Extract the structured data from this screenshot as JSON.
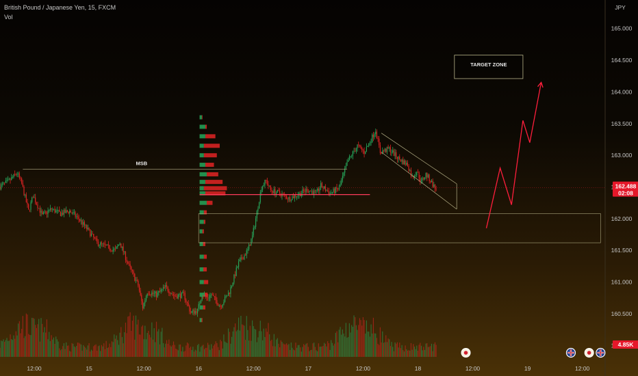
{
  "header": {
    "symbol": "British Pound / Japanese Yen, 15, FXCM",
    "indicator": "Vol"
  },
  "colors": {
    "up": "#26a65b",
    "down": "#e02424",
    "accent_line": "#ff3b5c",
    "price_badge": "#e5182a",
    "annotation": "#b9b48a"
  },
  "chart_data": {
    "type": "candlestick",
    "currency_label": "JPY",
    "y_ticks": [
      "165.000",
      "164.500",
      "164.000",
      "163.500",
      "163.000",
      "162.500",
      "162.000",
      "161.500",
      "161.000",
      "160.500",
      "160.000"
    ],
    "y_tick_values": [
      165.0,
      164.5,
      164.0,
      163.5,
      163.0,
      162.5,
      162.0,
      161.5,
      161.0,
      160.5,
      160.0
    ],
    "x_ticks": [
      "12:00",
      "15",
      "12:00",
      "16",
      "12:00",
      "17",
      "12:00",
      "18",
      "12:00",
      "19",
      "12:00"
    ],
    "x_tick_hours": [
      12,
      24,
      36,
      48,
      60,
      72,
      84,
      96,
      108,
      120,
      132
    ],
    "ylim": [
      159.82,
      165.45
    ],
    "xlim_hours": [
      4.5,
      137
    ],
    "current_price": {
      "value": 162.488,
      "label": "162.488",
      "countdown": "02:08"
    },
    "volume_badge": "4.85K",
    "path": [
      [
        4.5,
        162.5
      ],
      [
        6.5,
        162.58
      ],
      [
        8.5,
        162.72
      ],
      [
        9.5,
        162.55
      ],
      [
        11,
        162.12
      ],
      [
        12,
        162.36
      ],
      [
        14,
        162.05
      ],
      [
        16,
        162.15
      ],
      [
        18,
        162.08
      ],
      [
        20,
        162.12
      ],
      [
        22,
        162.0
      ],
      [
        24,
        161.82
      ],
      [
        26,
        161.62
      ],
      [
        28,
        161.56
      ],
      [
        30,
        161.5
      ],
      [
        31,
        161.62
      ],
      [
        33,
        161.25
      ],
      [
        35,
        160.95
      ],
      [
        36,
        160.6
      ],
      [
        37,
        160.85
      ],
      [
        39,
        160.8
      ],
      [
        41,
        160.92
      ],
      [
        43,
        160.78
      ],
      [
        45,
        160.8
      ],
      [
        46.5,
        160.52
      ],
      [
        48,
        160.55
      ],
      [
        49,
        160.82
      ],
      [
        50,
        160.75
      ],
      [
        51,
        160.8
      ],
      [
        53,
        160.62
      ],
      [
        55,
        160.85
      ],
      [
        57,
        161.3
      ],
      [
        59,
        161.5
      ],
      [
        60,
        161.72
      ],
      [
        61,
        162.1
      ],
      [
        62,
        162.5
      ],
      [
        63,
        162.6
      ],
      [
        64,
        162.45
      ],
      [
        66,
        162.4
      ],
      [
        68,
        162.32
      ],
      [
        70,
        162.38
      ],
      [
        72,
        162.46
      ],
      [
        74,
        162.4
      ],
      [
        75,
        162.52
      ],
      [
        77,
        162.4
      ],
      [
        79,
        162.48
      ],
      [
        81,
        162.92
      ],
      [
        83,
        163.15
      ],
      [
        84.5,
        163.05
      ],
      [
        86,
        163.25
      ],
      [
        87,
        163.4
      ],
      [
        88,
        163.05
      ],
      [
        90,
        163.1
      ],
      [
        92,
        162.95
      ],
      [
        94,
        162.85
      ],
      [
        95,
        162.65
      ],
      [
        96,
        162.75
      ],
      [
        97,
        162.58
      ],
      [
        98,
        162.7
      ],
      [
        99,
        162.6
      ],
      [
        100,
        162.48
      ]
    ],
    "volume_profile": {
      "x_hours": 48.2,
      "bins": [
        [
          163.6,
          0.1,
          0.02
        ],
        [
          163.45,
          0.25,
          0.05
        ],
        [
          163.3,
          0.55,
          0.35
        ],
        [
          163.15,
          0.7,
          0.55
        ],
        [
          163.0,
          0.6,
          0.45
        ],
        [
          162.85,
          0.5,
          0.3
        ],
        [
          162.7,
          0.65,
          0.4
        ],
        [
          162.58,
          0.8,
          0.6
        ],
        [
          162.48,
          0.95,
          0.8
        ],
        [
          162.4,
          0.9,
          0.7
        ],
        [
          162.25,
          0.45,
          0.2
        ],
        [
          162.1,
          0.25,
          0.1
        ],
        [
          161.95,
          0.2,
          0.05
        ],
        [
          161.8,
          0.15,
          0.05
        ],
        [
          161.6,
          0.2,
          0.08
        ],
        [
          161.4,
          0.25,
          0.1
        ],
        [
          161.2,
          0.25,
          0.12
        ],
        [
          161.0,
          0.3,
          0.15
        ],
        [
          160.8,
          0.28,
          0.12
        ],
        [
          160.6,
          0.2,
          0.08
        ],
        [
          160.4,
          0.1,
          0.03
        ]
      ]
    },
    "annotations": {
      "msb": {
        "label": "MSB",
        "x_from_hours": 9.5,
        "x_to_hours": 80.5,
        "price": 162.78
      },
      "target_zone": {
        "label": "TARGET ZONE",
        "x_from_hours": 104,
        "x_to_hours": 119,
        "price_top": 164.58,
        "price_bottom": 164.21
      },
      "demand_zone": {
        "x_from_hours": 48,
        "x_to_hours": 136,
        "price_top": 162.08,
        "price_bottom": 161.62
      },
      "poc_line": {
        "x_from_hours": 48.2,
        "x_to_hours": 85.5,
        "price": 162.38
      },
      "channel": {
        "upper": [
          [
            88,
            163.35
          ],
          [
            104.5,
            162.55
          ]
        ],
        "lower": [
          [
            88,
            163.05
          ],
          [
            104.5,
            162.15
          ]
        ]
      },
      "projection": [
        [
          111,
          161.85
        ],
        [
          114,
          162.8
        ],
        [
          116.5,
          162.22
        ],
        [
          119,
          163.55
        ],
        [
          120.5,
          163.2
        ],
        [
          123,
          164.15
        ]
      ]
    },
    "event_markers": [
      {
        "x_hours": 106.5,
        "icon": "calendar-event-icon"
      },
      {
        "x_hours": 129.5,
        "icon": "uk-flag-icon"
      },
      {
        "x_hours": 133.5,
        "icon": "calendar-event-icon"
      },
      {
        "x_hours": 136,
        "icon": "uk-flag-icon"
      }
    ]
  }
}
